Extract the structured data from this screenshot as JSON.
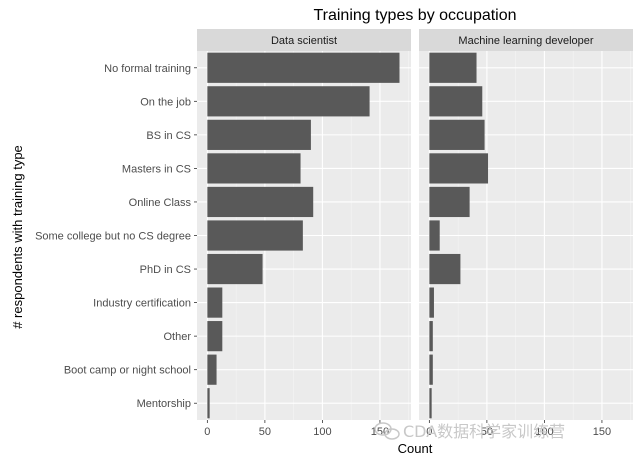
{
  "chart_data": {
    "type": "bar",
    "orientation": "horizontal",
    "title": "Training types by occupation",
    "xlabel": "Count",
    "ylabel": "# respondents with training type",
    "categories": [
      "No formal training",
      "On the job",
      "BS in CS",
      "Masters in CS",
      "Online Class",
      "Some college  but no CS degree",
      "PhD in CS",
      "Industry certification",
      "Other",
      "Boot camp or night school",
      "Mentorship"
    ],
    "xlim": [
      -9,
      177
    ],
    "x_ticks": [
      0,
      50,
      100,
      150
    ],
    "grid": true,
    "panels": [
      {
        "name": "Data scientist",
        "values": [
          167,
          141,
          90,
          81,
          92,
          83,
          48,
          13,
          13,
          8,
          2
        ]
      },
      {
        "name": "Machine learning developer",
        "values": [
          41,
          46,
          48,
          51,
          35,
          9,
          27,
          4,
          3,
          3,
          2
        ]
      }
    ]
  },
  "watermark": "CDA数据科学家训练营",
  "colors": {
    "panel_bg": "#ebebeb",
    "strip_bg": "#d9d9d9",
    "grid_major": "#ffffff",
    "bar_fill": "#595959"
  }
}
